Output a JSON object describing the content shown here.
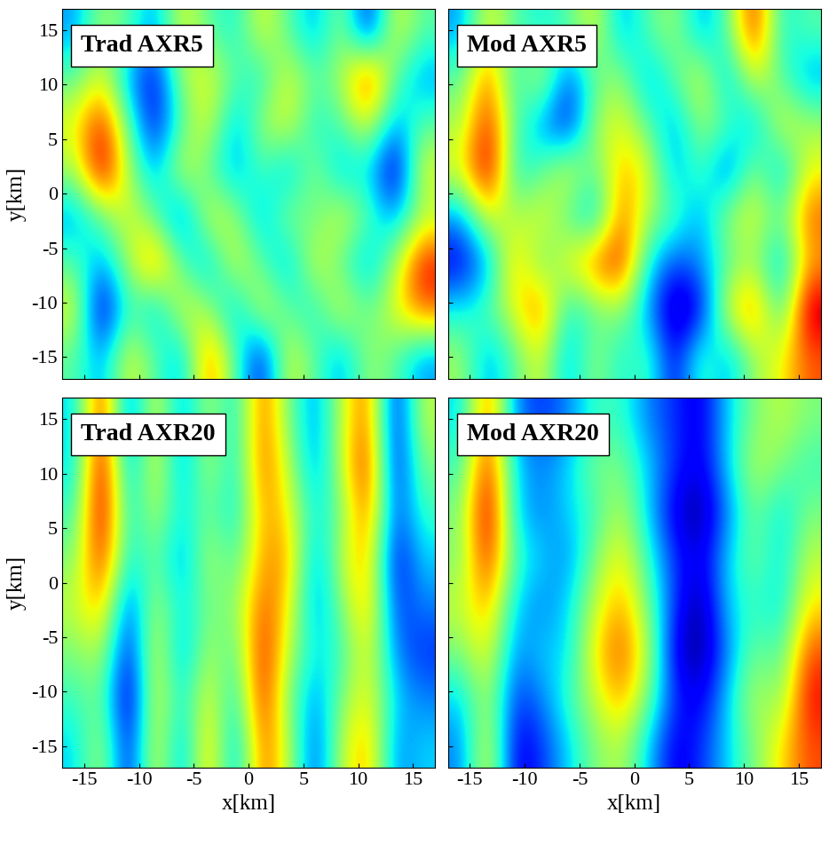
{
  "chart_data": [
    {
      "type": "heatmap",
      "annotation": "Trad AXR5",
      "ylabel": "y[km]",
      "color": "jet",
      "tick_labels": "y",
      "xlim": [
        -17,
        17
      ],
      "ylim": [
        -17,
        17
      ],
      "xticks": [
        -15,
        -10,
        -5,
        0,
        5,
        10,
        15
      ],
      "yticks": [
        -15,
        -10,
        -5,
        0,
        5,
        10,
        15
      ],
      "cells": [
        [
          -1,
          0.5,
          0,
          -1,
          1,
          0,
          -0.5,
          1,
          0,
          -1,
          0.5,
          -2,
          1,
          0
        ],
        [
          0,
          1,
          -1,
          -2,
          0.5,
          1,
          0,
          -0.5,
          1,
          0,
          0.5,
          2.5,
          0,
          -1
        ],
        [
          1,
          2.5,
          0,
          -2,
          0,
          1,
          -1,
          0.5,
          1,
          -0.5,
          0,
          1,
          -1,
          0
        ],
        [
          0.5,
          3,
          0.5,
          -1,
          1,
          0,
          -1,
          0,
          -1,
          0.5,
          -1,
          -0.5,
          -2.5,
          1
        ],
        [
          -1,
          0,
          1,
          0,
          -1.5,
          1,
          0.5,
          -1,
          0.5,
          0,
          1,
          0,
          -1,
          0.5
        ],
        [
          0,
          -1,
          0.5,
          2,
          0,
          -1,
          1,
          0,
          -1,
          1,
          0,
          -1,
          0.5,
          2.5
        ],
        [
          1,
          -2.5,
          0,
          -1,
          1,
          0.5,
          -1,
          1,
          0,
          -0.5,
          1,
          0,
          1,
          2
        ],
        [
          0,
          -1,
          1,
          0,
          -1,
          2,
          0,
          -2,
          1,
          0,
          -1,
          0.5,
          0,
          -1
        ]
      ]
    },
    {
      "type": "heatmap",
      "annotation": "Mod AXR5",
      "color": "jet",
      "tick_labels": false,
      "xlim": [
        -17,
        17
      ],
      "ylim": [
        -17,
        17
      ],
      "xticks": [
        -15,
        -10,
        -5,
        0,
        5,
        10,
        15
      ],
      "yticks": [
        -15,
        -10,
        -5,
        0,
        5,
        10,
        15
      ],
      "cells": [
        [
          -1,
          1,
          0,
          -0.5,
          0,
          1,
          -1,
          0,
          0.5,
          -1,
          0,
          2.5,
          -0.5,
          0
        ],
        [
          0,
          2,
          -0.5,
          1,
          -1.5,
          0,
          0.5,
          -1,
          0,
          1,
          -1,
          1,
          0,
          -1
        ],
        [
          0.5,
          2.5,
          0,
          -1,
          -2,
          0.5,
          1,
          0,
          -1,
          0.5,
          0,
          -1,
          1,
          0.5
        ],
        [
          1,
          3,
          -0.5,
          0,
          1,
          0,
          1.5,
          1,
          -1,
          0,
          -1.5,
          0.5,
          -1,
          1
        ],
        [
          -1,
          1,
          0.5,
          1,
          0,
          -1,
          2,
          0.5,
          0,
          -1,
          0.5,
          1,
          0,
          2
        ],
        [
          -2,
          -1,
          1.5,
          0,
          1,
          2,
          2.5,
          -0.5,
          -1.5,
          -1,
          0,
          0.5,
          -1,
          1.5
        ],
        [
          -0.5,
          0,
          1,
          2,
          -0.5,
          0,
          0.5,
          -1,
          -2.5,
          -2,
          1,
          2,
          -0.5,
          3
        ],
        [
          0.5,
          -1,
          0,
          1,
          -1,
          0.5,
          -0.5,
          0,
          -2,
          0,
          -1,
          0.5,
          1,
          2
        ]
      ]
    },
    {
      "type": "heatmap",
      "annotation": "Trad AXR20",
      "xlabel": "x[km]",
      "ylabel": "y[km]",
      "color": "jet",
      "tick_labels": true,
      "xlim": [
        -17,
        17
      ],
      "ylim": [
        -17,
        17
      ],
      "xticks": [
        -15,
        -10,
        -5,
        0,
        5,
        10,
        15
      ],
      "yticks": [
        -15,
        -10,
        -5,
        0,
        5,
        10,
        15
      ],
      "cells": [
        [
          -1,
          2.5,
          -2,
          1,
          -1.5,
          0.5,
          -1,
          2,
          0,
          -1.5,
          0.5,
          2,
          -2.5,
          0.5
        ],
        [
          -1,
          3,
          -1.5,
          1,
          -1.5,
          0.5,
          -1,
          2,
          0.5,
          -1.5,
          0.5,
          2.5,
          -2.5,
          0
        ],
        [
          -0.5,
          3,
          -1,
          0.5,
          -1,
          0,
          -1,
          1.5,
          1,
          -1,
          0,
          2,
          -2,
          -0.5
        ],
        [
          0,
          2.5,
          -1,
          0,
          -1.5,
          0.5,
          -0.5,
          1.5,
          1.5,
          -1.5,
          0.5,
          1.5,
          -2.5,
          -1
        ],
        [
          0.5,
          1.5,
          -2,
          0.5,
          -1,
          0,
          0,
          2,
          1,
          -1.5,
          0,
          1.5,
          -2,
          -1.5
        ],
        [
          0,
          0.5,
          -2.5,
          1,
          -1.5,
          0.5,
          -0.5,
          2.5,
          0.5,
          -1,
          -0.5,
          1,
          -1.5,
          -2
        ],
        [
          -0.5,
          0,
          -3,
          1,
          -1,
          1,
          -1,
          2.5,
          0,
          -1.5,
          0,
          1,
          -1,
          -1.5
        ],
        [
          -1,
          0.5,
          -2.5,
          1,
          -1.5,
          1.5,
          -1.5,
          2,
          0.5,
          -2,
          0.5,
          1.5,
          -1.5,
          -1
        ]
      ]
    },
    {
      "type": "heatmap",
      "annotation": "Mod AXR20",
      "xlabel": "x[km]",
      "color": "jet",
      "tick_labels": "x",
      "xlim": [
        -17,
        17
      ],
      "ylim": [
        -17,
        17
      ],
      "xticks": [
        -15,
        -10,
        -5,
        0,
        5,
        10,
        15
      ],
      "yticks": [
        -15,
        -10,
        -5,
        0,
        5,
        10,
        15
      ],
      "cells": [
        [
          -1,
          2,
          -1.5,
          -2,
          -1.5,
          -0.5,
          -0.5,
          -1.5,
          -2,
          -2.5,
          -1,
          0,
          0.5,
          0
        ],
        [
          -0.5,
          2.5,
          -1,
          -1.5,
          -1,
          0,
          0,
          -1,
          -2,
          -2.5,
          -1,
          0.5,
          0,
          -0.5
        ],
        [
          0,
          3,
          -1,
          -1.5,
          -1,
          -0.5,
          0.5,
          -1,
          -2.5,
          -3,
          -1.5,
          0,
          -1,
          0
        ],
        [
          0,
          2.5,
          -0.5,
          -1,
          -1.5,
          0,
          1,
          -0.5,
          -2,
          -2.5,
          -1,
          0,
          -1,
          0.5
        ],
        [
          0.5,
          1.5,
          -1,
          -1.5,
          -1,
          0.5,
          1.5,
          0,
          -2,
          -3,
          -1,
          -0.5,
          -1,
          1
        ],
        [
          0,
          1,
          -1.5,
          -1,
          -1,
          1,
          2,
          0.5,
          -2.5,
          -3,
          -1.5,
          0,
          -0.5,
          2
        ],
        [
          -1,
          0.5,
          -2,
          -1.5,
          -0.5,
          0.5,
          1.5,
          0,
          -2,
          -2.5,
          -1,
          0.5,
          0,
          2.5
        ],
        [
          -1.5,
          1,
          -2.5,
          -2,
          -1,
          0,
          0.5,
          -1,
          -2.5,
          -2,
          -1,
          0,
          1,
          2
        ]
      ]
    }
  ]
}
